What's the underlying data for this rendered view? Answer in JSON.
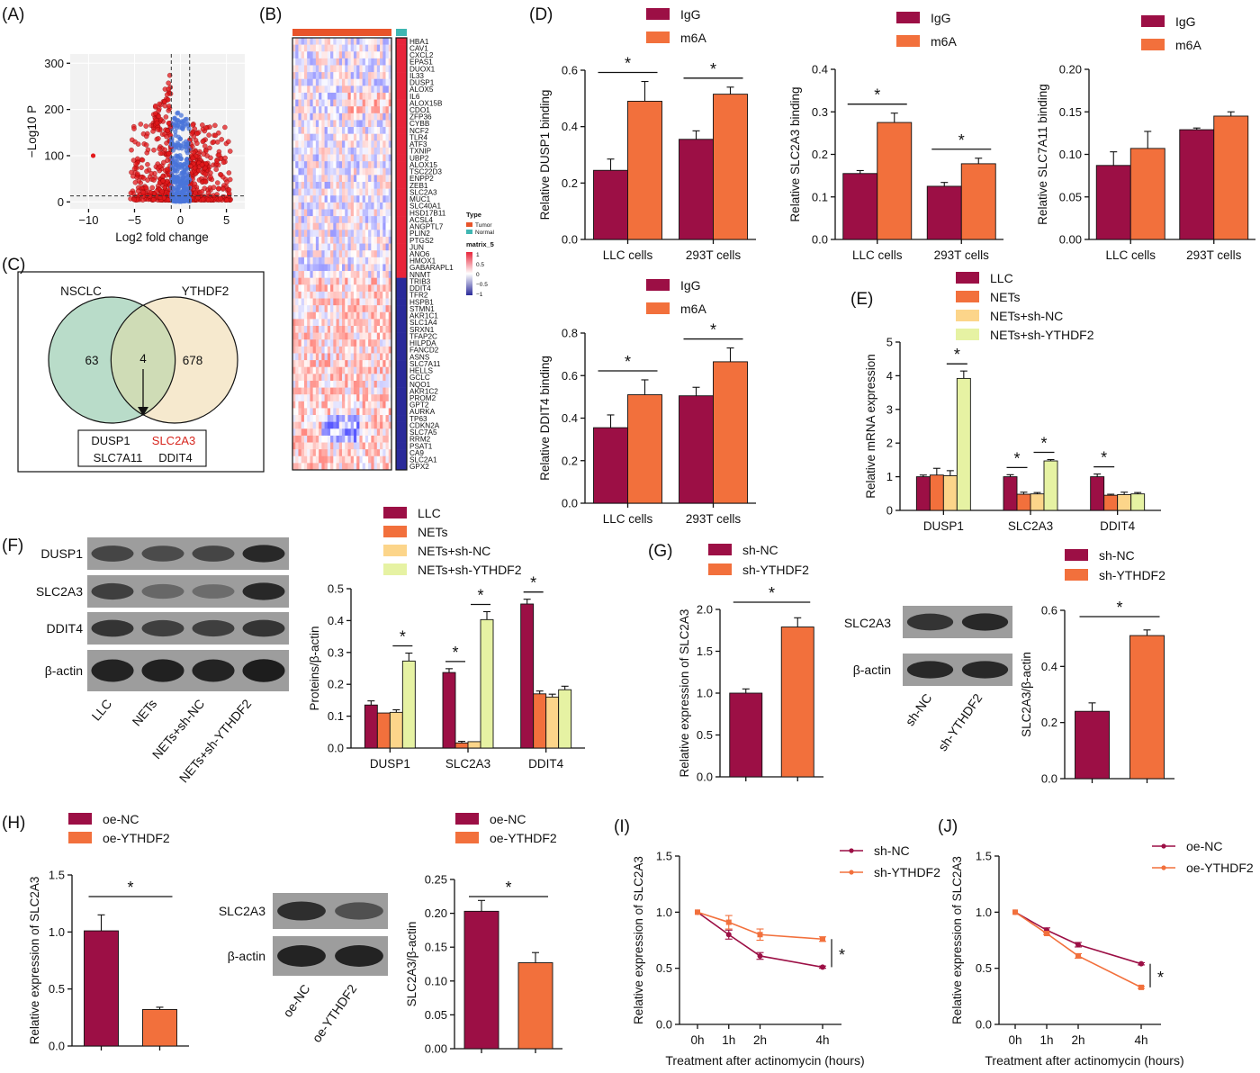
{
  "colors": {
    "red": "#9c0f45",
    "orange": "#f2703c",
    "yellow": "#fcd58a",
    "lime": "#e6f2a3",
    "normal": "#3c3c9b",
    "tumor": "#e8542a",
    "volcano_red": "#e31a1c",
    "volcano_blue": "#4a74d9",
    "venn_left": "#b9dcc9",
    "venn_right": "#f5e5c6"
  },
  "panels": {
    "A": "(A)",
    "B": "(B)",
    "C": "(C)",
    "D": "(D)",
    "E": "(E)",
    "F": "(F)",
    "G": "(G)",
    "H": "(H)",
    "I": "(I)",
    "J": "(J)"
  },
  "volcano": {
    "ylabel": "−Log10 P",
    "xlabel": "Log2 fold change",
    "xticks": [
      -10,
      -5,
      0,
      5
    ],
    "yticks": [
      0,
      100,
      200,
      300
    ]
  },
  "heatmap": {
    "genes": [
      "HBA1",
      "CAV1",
      "CXCL2",
      "EPAS1",
      "DUOX1",
      "IL33",
      "DUSP1",
      "ALOX5",
      "IL6",
      "ALOX15B",
      "CDO1",
      "ZFP36",
      "CYBB",
      "NCF2",
      "TLR4",
      "ATF3",
      "TXNIP",
      "UBP2",
      "ALOX15",
      "TSC22D3",
      "ENPP2",
      "ZEB1",
      "SLC2A3",
      "MUC1",
      "SLC40A1",
      "HSD17B11",
      "ACSL4",
      "ANGPTL7",
      "PLIN2",
      "PTGS2",
      "JUN",
      "ANO6",
      "HMOX1",
      "GABARAPL1",
      "NNMT",
      "TRIB3",
      "DDIT4",
      "TFR2",
      "HSPB1",
      "STMN1",
      "AKR1C1",
      "SLC1A4",
      "SRXN1",
      "TFAP2C",
      "HILPDA",
      "FANCD2",
      "ASNS",
      "SLC7A11",
      "HELLS",
      "GCLC",
      "NQO1",
      "AKR1C2",
      "PROM2",
      "GPT2",
      "AURKA",
      "TP63",
      "CDKN2A",
      "SLC7A5",
      "RRM2",
      "PSAT1",
      "CA9",
      "SLC2A1",
      "GPX2"
    ],
    "type_title": "Type",
    "type_tumor": "Tumor",
    "type_normal": "Normal",
    "matrix_title": "matrix_5",
    "scale_ticks": [
      "1",
      "0.5",
      "0",
      "−0.5",
      "−1"
    ]
  },
  "venn": {
    "left": "NSCLC",
    "right": "YTHDF2",
    "left_only": "63",
    "both": "4",
    "right_only": "678",
    "genes": [
      "DUSP1",
      "SLC2A3",
      "SLC7A11",
      "DDIT4"
    ]
  },
  "blots": {
    "F": {
      "rows": [
        "DUSP1",
        "SLC2A3",
        "DDIT4",
        "β-actin"
      ],
      "lanes": [
        "LLC",
        "NETs",
        "NETs+sh-NC",
        "NETs+sh-YTHDF2"
      ]
    },
    "G": {
      "rows": [
        "SLC2A3",
        "β-actin"
      ],
      "lanes": [
        "sh-NC",
        "sh-YTHDF2"
      ]
    },
    "H": {
      "rows": [
        "SLC2A3",
        "β-actin"
      ],
      "lanes": [
        "oe-NC",
        "oe-YTHDF2"
      ]
    }
  },
  "chart_data": [
    {
      "id": "D1",
      "type": "bar",
      "categories": [
        "LLC cells",
        "293T cells"
      ],
      "ylabel": "Relative DUSP1 binding",
      "ylim": [
        0,
        0.6
      ],
      "yticks": [
        "0.0",
        "0.2",
        "0.4",
        "0.6"
      ],
      "series": [
        {
          "name": "IgG",
          "values": [
            0.245,
            0.355
          ],
          "err": [
            0.04,
            0.03
          ]
        },
        {
          "name": "m6A",
          "values": [
            0.49,
            0.515
          ],
          "err": [
            0.07,
            0.025
          ]
        }
      ],
      "sig": [
        [
          "LLC cells",
          "*"
        ],
        [
          "293T cells",
          "*"
        ]
      ]
    },
    {
      "id": "D2",
      "type": "bar",
      "categories": [
        "LLC cells",
        "293T cells"
      ],
      "ylabel": "Relative SLC2A3 binding",
      "ylim": [
        0,
        0.4
      ],
      "yticks": [
        "0.0",
        "0.1",
        "0.2",
        "0.3",
        "0.4"
      ],
      "series": [
        {
          "name": "IgG",
          "values": [
            0.155,
            0.125
          ],
          "err": [
            0.007,
            0.009
          ]
        },
        {
          "name": "m6A",
          "values": [
            0.275,
            0.178
          ],
          "err": [
            0.022,
            0.013
          ]
        }
      ],
      "sig": [
        [
          "LLC cells",
          "*"
        ],
        [
          "293T cells",
          "*"
        ]
      ]
    },
    {
      "id": "D3",
      "type": "bar",
      "categories": [
        "LLC cells",
        "293T cells"
      ],
      "ylabel": "Relative SLC7A11 binding",
      "ylim": [
        0,
        0.2
      ],
      "yticks": [
        "0.00",
        "0.05",
        "0.10",
        "0.15",
        "0.20"
      ],
      "series": [
        {
          "name": "IgG",
          "values": [
            0.087,
            0.129
          ],
          "err": [
            0.016,
            0.002
          ]
        },
        {
          "name": "m6A",
          "values": [
            0.107,
            0.145
          ],
          "err": [
            0.02,
            0.005
          ]
        }
      ],
      "sig": []
    },
    {
      "id": "D4",
      "type": "bar",
      "categories": [
        "LLC cells",
        "293T cells"
      ],
      "ylabel": "Relative DDIT4 binding",
      "ylim": [
        0,
        0.8
      ],
      "yticks": [
        "0.0",
        "0.2",
        "0.4",
        "0.6",
        "0.8"
      ],
      "series": [
        {
          "name": "IgG",
          "values": [
            0.355,
            0.505
          ],
          "err": [
            0.06,
            0.04
          ]
        },
        {
          "name": "m6A",
          "values": [
            0.51,
            0.665
          ],
          "err": [
            0.07,
            0.065
          ]
        }
      ],
      "sig": [
        [
          "LLC cells",
          "*"
        ],
        [
          "293T cells",
          "*"
        ]
      ]
    },
    {
      "id": "E",
      "type": "bar",
      "categories": [
        "DUSP1",
        "SLC2A3",
        "DDIT4"
      ],
      "ylabel": "Relative mRNA expression",
      "ylim": [
        0,
        5
      ],
      "yticks": [
        "0",
        "1",
        "2",
        "3",
        "4",
        "5"
      ],
      "series": [
        {
          "name": "LLC",
          "values": [
            1.0,
            1.0,
            1.0
          ],
          "err": [
            0.05,
            0.06,
            0.08
          ]
        },
        {
          "name": "NETs",
          "values": [
            1.05,
            0.48,
            0.45
          ],
          "err": [
            0.2,
            0.06,
            0.03
          ]
        },
        {
          "name": "NETs+sh-NC",
          "values": [
            1.03,
            0.49,
            0.47
          ],
          "err": [
            0.15,
            0.04,
            0.07
          ]
        },
        {
          "name": "NETs+sh-YTHDF2",
          "values": [
            3.92,
            1.47,
            0.49
          ],
          "err": [
            0.22,
            0.04,
            0.04
          ]
        }
      ],
      "sig": []
    },
    {
      "id": "F",
      "type": "bar",
      "categories": [
        "DUSP1",
        "SLC2A3",
        "DDIT4"
      ],
      "ylabel": "Proteins/β-actin",
      "ylim": [
        0,
        0.5
      ],
      "yticks": [
        "0.0",
        "0.1",
        "0.2",
        "0.3",
        "0.4",
        "0.5"
      ],
      "series": [
        {
          "name": "LLC",
          "values": [
            0.135,
            0.237,
            0.452
          ],
          "err": [
            0.013,
            0.012,
            0.015
          ]
        },
        {
          "name": "NETs",
          "values": [
            0.11,
            0.016,
            0.17
          ],
          "err": [
            0.0,
            0.005,
            0.009
          ]
        },
        {
          "name": "NETs+sh-NC",
          "values": [
            0.112,
            0.02,
            0.16
          ],
          "err": [
            0.008,
            0.0,
            0.009
          ]
        },
        {
          "name": "NETs+sh-YTHDF2",
          "values": [
            0.273,
            0.403,
            0.183
          ],
          "err": [
            0.025,
            0.025,
            0.011
          ]
        }
      ],
      "sig": []
    },
    {
      "id": "G1",
      "type": "bar",
      "categories": [
        "sh-NC",
        "sh-YTHDF2"
      ],
      "ylabel": "Relative expression of SLC2A3",
      "ylim": [
        0,
        2.0
      ],
      "yticks": [
        "0.0",
        "0.5",
        "1.0",
        "1.5",
        "2.0"
      ],
      "values": [
        1.0,
        1.79
      ],
      "err": [
        0.05,
        0.11
      ]
    },
    {
      "id": "G2",
      "type": "bar",
      "categories": [
        "sh-NC",
        "sh-YTHDF2"
      ],
      "ylabel": "SLC2A3/β-actin",
      "ylim": [
        0,
        0.6
      ],
      "yticks": [
        "0.0",
        "0.2",
        "0.4",
        "0.6"
      ],
      "values": [
        0.24,
        0.51
      ],
      "err": [
        0.03,
        0.02
      ]
    },
    {
      "id": "H1",
      "type": "bar",
      "categories": [
        "oe-NC",
        "oe-YTHDF2"
      ],
      "ylabel": "Relative expression of SLC2A3",
      "ylim": [
        0,
        1.5
      ],
      "yticks": [
        "0.0",
        "0.5",
        "1.0",
        "1.5"
      ],
      "values": [
        1.01,
        0.32
      ],
      "err": [
        0.14,
        0.02
      ]
    },
    {
      "id": "H2",
      "type": "bar",
      "categories": [
        "oe-NC",
        "oe-YTHDF2"
      ],
      "ylabel": "SLC2A3/β-actin",
      "ylim": [
        0,
        0.25
      ],
      "yticks": [
        "0.00",
        "0.05",
        "0.10",
        "0.15",
        "0.20",
        "0.25"
      ],
      "values": [
        0.203,
        0.127
      ],
      "err": [
        0.016,
        0.015
      ]
    },
    {
      "id": "I",
      "type": "line",
      "x": [
        "0h",
        "1h",
        "2h",
        "4h"
      ],
      "xlabel": "Treatment after actinomycin (hours)",
      "ylabel": "Relative expression of SLC2A3",
      "ylim": [
        0,
        1.5
      ],
      "yticks": [
        "0.0",
        "0.5",
        "1.0",
        "1.5"
      ],
      "series": [
        {
          "name": "sh-NC",
          "values": [
            1.0,
            0.8,
            0.61,
            0.51
          ],
          "err": [
            0,
            0.04,
            0.03,
            0.01
          ]
        },
        {
          "name": "sh-YTHDF2",
          "values": [
            1.0,
            0.91,
            0.8,
            0.76
          ],
          "err": [
            0,
            0.06,
            0.05,
            0.02
          ]
        }
      ],
      "sig": "*"
    },
    {
      "id": "J",
      "type": "line",
      "x": [
        "0h",
        "1h",
        "2h",
        "4h"
      ],
      "xlabel": "Treatment after actinomycin (hours)",
      "ylabel": "Relative expression of SLC2A3",
      "ylim": [
        0,
        1.5
      ],
      "yticks": [
        "0.0",
        "0.5",
        "1.0",
        "1.5"
      ],
      "series": [
        {
          "name": "oe-NC",
          "values": [
            1.0,
            0.84,
            0.71,
            0.54
          ],
          "err": [
            0,
            0.02,
            0.02,
            0.01
          ]
        },
        {
          "name": "oe-YTHDF2",
          "values": [
            1.0,
            0.81,
            0.61,
            0.33
          ],
          "err": [
            0,
            0.01,
            0.02,
            0.01
          ]
        }
      ],
      "sig": "*"
    }
  ]
}
